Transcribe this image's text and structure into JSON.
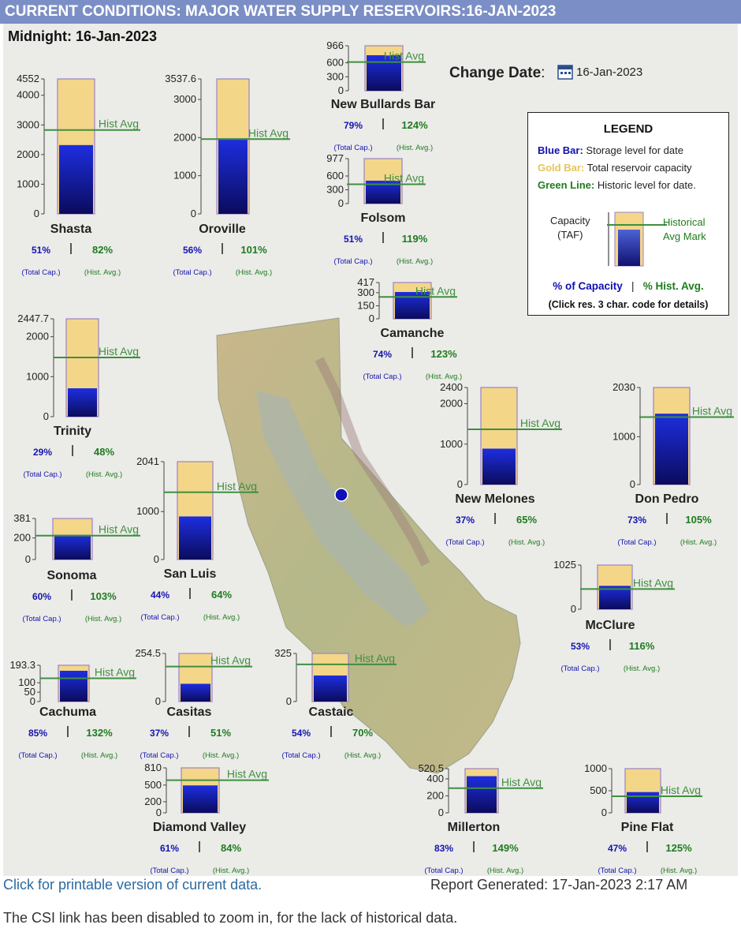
{
  "header": {
    "title": "CURRENT CONDITIONS: MAJOR WATER SUPPLY RESERVOIRS:16-JAN-2023"
  },
  "midnight": "Midnight: 16-Jan-2023",
  "change_date": {
    "label": "Change Date",
    "value": "16-Jan-2023"
  },
  "legend": {
    "title": "LEGEND",
    "blue": {
      "key": "Blue Bar:",
      "text": " Storage level for date"
    },
    "gold": {
      "key": "Gold Bar:",
      "text": " Total reservoir capacity"
    },
    "green": {
      "key": "Green Line:",
      "text": " Historic level for date."
    },
    "capacity": "Capacity",
    "taf": "(TAF)",
    "hist1": "Historical",
    "hist2": "Avg Mark",
    "pct_cap": "% of Capacity",
    "pct_hist": "% Hist. Avg.",
    "click": "(Click res. 3 char. code for details)"
  },
  "common": {
    "hist_avg": "Hist Avg",
    "total_cap": "(Total Cap.)",
    "hist_avg_small": "(Hist. Avg.)",
    "sep": "|"
  },
  "chart_data": [
    {
      "type": "bar",
      "name": "Shasta",
      "capacity": 4552,
      "storage": 2320,
      "hist_avg": 2830,
      "pct_capacity": "51%",
      "pct_hist": "82%",
      "ticks": [
        0,
        1000,
        2000,
        3000,
        4000,
        4552
      ]
    },
    {
      "type": "bar",
      "name": "Oroville",
      "capacity": 3537.6,
      "storage": 1980,
      "hist_avg": 1960,
      "pct_capacity": "56%",
      "pct_hist": "101%",
      "ticks": [
        0,
        1000,
        2000,
        3000,
        3537.6
      ]
    },
    {
      "type": "bar",
      "name": "New Bullards Bar",
      "capacity": 966,
      "storage": 763,
      "hist_avg": 616,
      "pct_capacity": "79%",
      "pct_hist": "124%",
      "ticks": [
        0,
        300,
        600,
        966
      ]
    },
    {
      "type": "bar",
      "name": "Folsom",
      "capacity": 977,
      "storage": 498,
      "hist_avg": 419,
      "pct_capacity": "51%",
      "pct_hist": "119%",
      "ticks": [
        0,
        300,
        600,
        977
      ]
    },
    {
      "type": "bar",
      "name": "Camanche",
      "capacity": 417,
      "storage": 308,
      "hist_avg": 251,
      "pct_capacity": "74%",
      "pct_hist": "123%",
      "ticks": [
        0,
        150,
        300,
        417
      ]
    },
    {
      "type": "bar",
      "name": "Trinity",
      "capacity": 2447.7,
      "storage": 710,
      "hist_avg": 1480,
      "pct_capacity": "29%",
      "pct_hist": "48%",
      "ticks": [
        0,
        1000,
        2000,
        2447.7
      ]
    },
    {
      "type": "bar",
      "name": "New Melones",
      "capacity": 2400,
      "storage": 888,
      "hist_avg": 1366,
      "pct_capacity": "37%",
      "pct_hist": "65%",
      "ticks": [
        0,
        1000,
        2000,
        2400
      ]
    },
    {
      "type": "bar",
      "name": "Don Pedro",
      "capacity": 2030,
      "storage": 1482,
      "hist_avg": 1411,
      "pct_capacity": "73%",
      "pct_hist": "105%",
      "ticks": [
        0,
        1000,
        2030
      ]
    },
    {
      "type": "bar",
      "name": "Sonoma",
      "capacity": 381,
      "storage": 229,
      "hist_avg": 222,
      "pct_capacity": "60%",
      "pct_hist": "103%",
      "ticks": [
        0,
        200,
        381
      ]
    },
    {
      "type": "bar",
      "name": "San Luis",
      "capacity": 2041,
      "storage": 898,
      "hist_avg": 1403,
      "pct_capacity": "44%",
      "pct_hist": "64%",
      "ticks": [
        0,
        1000,
        2041
      ]
    },
    {
      "type": "bar",
      "name": "McClure",
      "capacity": 1025,
      "storage": 543,
      "hist_avg": 468,
      "pct_capacity": "53%",
      "pct_hist": "116%",
      "ticks": [
        0,
        1025
      ]
    },
    {
      "type": "bar",
      "name": "Cachuma",
      "capacity": 193.3,
      "storage": 164,
      "hist_avg": 124,
      "pct_capacity": "85%",
      "pct_hist": "132%",
      "ticks": [
        0,
        50,
        100,
        193.3
      ]
    },
    {
      "type": "bar",
      "name": "Casitas",
      "capacity": 254.5,
      "storage": 94,
      "hist_avg": 185,
      "pct_capacity": "37%",
      "pct_hist": "51%",
      "ticks": [
        0,
        254.5
      ]
    },
    {
      "type": "bar",
      "name": "Castaic",
      "capacity": 325,
      "storage": 176,
      "hist_avg": 251,
      "pct_capacity": "54%",
      "pct_hist": "70%",
      "ticks": [
        0,
        325
      ]
    },
    {
      "type": "bar",
      "name": "Diamond Valley",
      "capacity": 810,
      "storage": 494,
      "hist_avg": 588,
      "pct_capacity": "61%",
      "pct_hist": "84%",
      "ticks": [
        0,
        200,
        500,
        810
      ]
    },
    {
      "type": "bar",
      "name": "Millerton",
      "capacity": 520.5,
      "storage": 432,
      "hist_avg": 290,
      "pct_capacity": "83%",
      "pct_hist": "149%",
      "ticks": [
        0,
        200,
        400,
        520.5
      ]
    },
    {
      "type": "bar",
      "name": "Pine Flat",
      "capacity": 1000,
      "storage": 470,
      "hist_avg": 376,
      "pct_capacity": "47%",
      "pct_hist": "125%",
      "ticks": [
        0,
        500,
        1000
      ]
    }
  ],
  "footer": {
    "printable": "Click for printable version of current data.",
    "generated": "Report Generated: 17-Jan-2023 2:17 AM",
    "csi_note": "The CSI link has been disabled to zoom in, for the lack of historical data."
  }
}
